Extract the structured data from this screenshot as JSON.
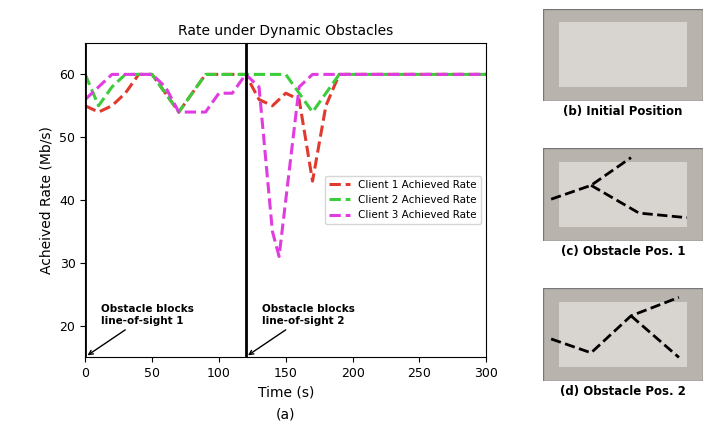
{
  "chart_data": {
    "type": "line",
    "title": "Rate under Dynamic Obstacles",
    "x_label": "Time (s)",
    "y_label": "Acheived Rate (Mb/s)",
    "x": [
      0,
      10,
      20,
      30,
      40,
      50,
      60,
      70,
      80,
      90,
      100,
      110,
      120,
      130,
      140,
      145,
      150,
      160,
      170,
      180,
      190,
      200,
      250,
      300
    ],
    "series": [
      {
        "name": "Client 1 Achieved Rate",
        "color": "#e03a2e",
        "line_style": "dashed",
        "values": [
          55,
          54,
          55,
          57,
          60,
          60,
          57,
          54,
          57,
          60,
          60,
          60,
          60,
          56,
          55,
          56,
          57,
          56,
          43,
          55,
          60,
          60,
          60,
          60
        ]
      },
      {
        "name": "Client 2 Achieved Rate",
        "color": "#3ccc3c",
        "line_style": "dashed",
        "values": [
          60,
          55,
          58,
          60,
          60,
          60,
          57,
          54,
          57,
          60,
          60,
          60,
          60,
          60,
          60,
          60,
          60,
          57,
          54,
          57,
          60,
          60,
          60,
          60
        ]
      },
      {
        "name": "Client 3 Achieved Rate",
        "color": "#e03ce0",
        "line_style": "dashed",
        "values": [
          56,
          58,
          60,
          60,
          60,
          60,
          58,
          54,
          54,
          54,
          57,
          57,
          60,
          58,
          35,
          31,
          40,
          58,
          60,
          60,
          60,
          60,
          60,
          60
        ]
      }
    ],
    "xlim": [
      0,
      300
    ],
    "xticks": [
      0,
      50,
      100,
      150,
      200,
      250,
      300
    ],
    "ylim": [
      15,
      65
    ],
    "yticks": [
      20,
      30,
      40,
      50,
      60
    ],
    "legend": "center right",
    "grid": false,
    "annotations": [
      {
        "text": "Obstacle blocks\nline-of-sight 1",
        "x": 0
      },
      {
        "text": "Obstacle blocks\nline-of-sight 2",
        "x": 120
      }
    ]
  },
  "panel_label": "(a)",
  "photos": [
    {
      "caption": "(b) Initial Position"
    },
    {
      "caption": "(c) Obstacle Pos. 1"
    },
    {
      "caption": "(d) Obstacle Pos. 2"
    }
  ]
}
